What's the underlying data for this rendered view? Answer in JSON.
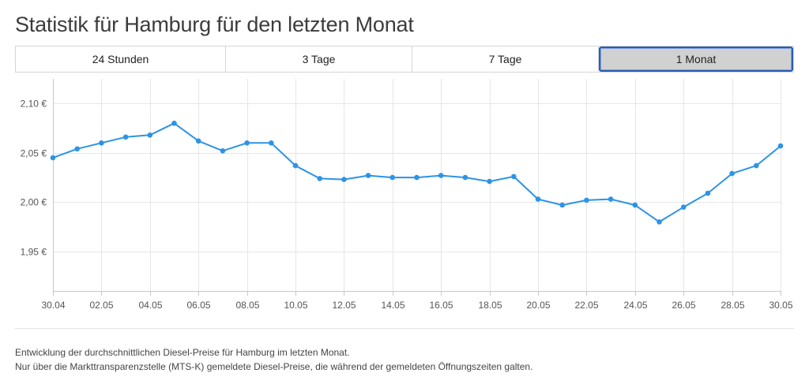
{
  "page": {
    "title": "Statistik für Hamburg für den letzten Monat",
    "tabs": [
      {
        "label": "24 Stunden",
        "active": false
      },
      {
        "label": "3 Tage",
        "active": false
      },
      {
        "label": "7 Tage",
        "active": false
      },
      {
        "label": "1 Monat",
        "active": true
      }
    ],
    "notes": {
      "line1": "Entwicklung der durchschnittlichen Diesel-Preise für Hamburg im letzten Monat.",
      "line2": "Nur über die Markttransparenzstelle (MTS-K) gemeldete Diesel-Preise, die während der gemeldeten Öffnungszeiten galten."
    }
  },
  "colors": {
    "line": "#2d93e6",
    "grid": "#e6e6e6",
    "axis": "#c8c8c8",
    "active_tab_border": "#2a5db0",
    "active_tab_bg": "#d1d1d1"
  },
  "chart_data": {
    "type": "line",
    "title": "Statistik für Hamburg für den letzten Monat",
    "xlabel": "",
    "ylabel": "",
    "ylim": [
      1.91,
      2.125
    ],
    "yticks": [
      1.95,
      2.0,
      2.05,
      2.1
    ],
    "ytick_labels": [
      "1,95 €",
      "2,00 €",
      "2,05 €",
      "2,10 €"
    ],
    "x": [
      "30.04",
      "01.05",
      "02.05",
      "03.05",
      "04.05",
      "05.05",
      "06.05",
      "07.05",
      "08.05",
      "09.05",
      "10.05",
      "11.05",
      "12.05",
      "13.05",
      "14.05",
      "15.05",
      "16.05",
      "17.05",
      "18.05",
      "19.05",
      "20.05",
      "21.05",
      "22.05",
      "23.05",
      "24.05",
      "25.05",
      "26.05",
      "27.05",
      "28.05",
      "29.05",
      "30.05"
    ],
    "xtick_labels": [
      "30.04",
      "02.05",
      "04.05",
      "06.05",
      "08.05",
      "10.05",
      "12.05",
      "14.05",
      "16.05",
      "18.05",
      "20.05",
      "22.05",
      "24.05",
      "26.05",
      "28.05",
      "30.05"
    ],
    "grid": true,
    "series": [
      {
        "name": "Diesel",
        "values": [
          2.045,
          2.054,
          2.06,
          2.066,
          2.068,
          2.08,
          2.062,
          2.052,
          2.06,
          2.06,
          2.037,
          2.024,
          2.023,
          2.027,
          2.025,
          2.025,
          2.027,
          2.025,
          2.021,
          2.026,
          2.003,
          1.997,
          2.002,
          2.003,
          1.997,
          1.98,
          1.995,
          2.009,
          2.029,
          2.037,
          2.057
        ]
      }
    ]
  }
}
